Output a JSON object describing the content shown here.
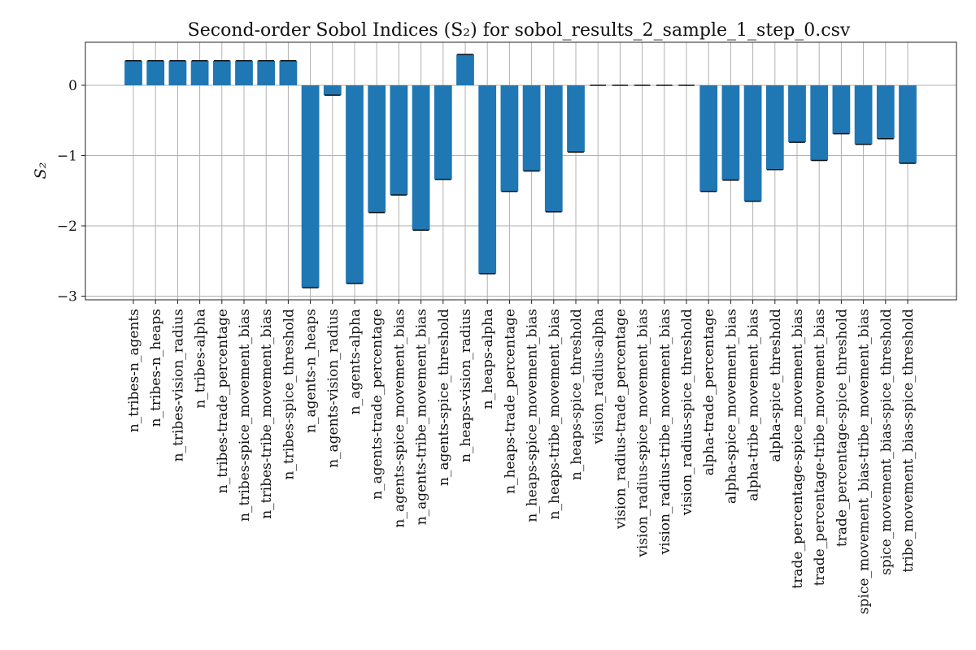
{
  "chart_data": {
    "type": "bar",
    "title": "Second-order Sobol Indices (S₂) for sobol_results_2_sample_1_step_0.csv",
    "xlabel": "",
    "ylabel": "S₂",
    "ylim": [
      -3.05,
      0.62
    ],
    "yticks": [
      0,
      -1,
      -2,
      -3
    ],
    "ytick_labels": [
      "0",
      "−1",
      "−2",
      "−3"
    ],
    "grid": true,
    "bar_color": "#1f77b4",
    "error_bar_color": "#111111",
    "categories": [
      "n_tribes-n_agents",
      "n_tribes-n_heaps",
      "n_tribes-vision_radius",
      "n_tribes-alpha",
      "n_tribes-trade_percentage",
      "n_tribes-spice_movement_bias",
      "n_tribes-tribe_movement_bias",
      "n_tribes-spice_threshold",
      "n_agents-n_heaps",
      "n_agents-vision_radius",
      "n_agents-alpha",
      "n_agents-trade_percentage",
      "n_agents-spice_movement_bias",
      "n_agents-tribe_movement_bias",
      "n_agents-spice_threshold",
      "n_heaps-vision_radius",
      "n_heaps-alpha",
      "n_heaps-trade_percentage",
      "n_heaps-spice_movement_bias",
      "n_heaps-tribe_movement_bias",
      "n_heaps-spice_threshold",
      "vision_radius-alpha",
      "vision_radius-trade_percentage",
      "vision_radius-spice_movement_bias",
      "vision_radius-tribe_movement_bias",
      "vision_radius-spice_threshold",
      "alpha-trade_percentage",
      "alpha-spice_movement_bias",
      "alpha-tribe_movement_bias",
      "alpha-spice_threshold",
      "trade_percentage-spice_movement_bias",
      "trade_percentage-tribe_movement_bias",
      "trade_percentage-spice_threshold",
      "spice_movement_bias-tribe_movement_bias",
      "spice_movement_bias-spice_threshold",
      "tribe_movement_bias-spice_threshold"
    ],
    "values": [
      0.35,
      0.35,
      0.35,
      0.35,
      0.35,
      0.35,
      0.35,
      0.35,
      -2.88,
      -0.14,
      -2.82,
      -1.81,
      -1.56,
      -2.06,
      -1.34,
      0.44,
      -2.68,
      -1.51,
      -1.22,
      -1.8,
      -0.95,
      0.0,
      0.0,
      0.0,
      0.0,
      0.0,
      -1.51,
      -1.35,
      -1.65,
      -1.2,
      -0.81,
      -1.07,
      -0.69,
      -0.84,
      -0.76,
      -1.11
    ]
  }
}
